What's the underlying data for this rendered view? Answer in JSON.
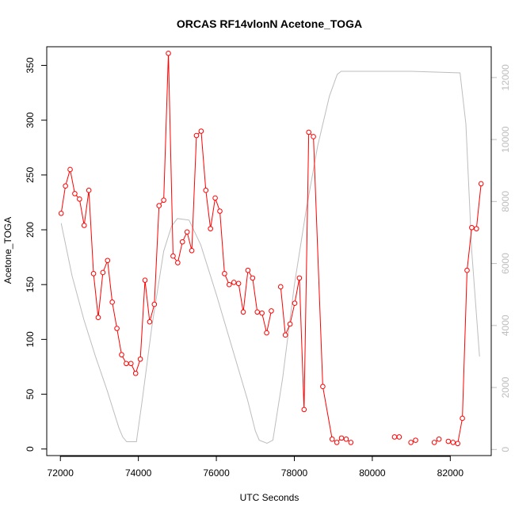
{
  "chart_data": {
    "type": "line",
    "title": "ORCAS RF14vlonN Acetone_TOGA",
    "xlabel": "UTC Seconds",
    "ylabel": "Acetone_TOGA",
    "xlim": [
      71650,
      83050
    ],
    "ylim": [
      -6,
      367
    ],
    "y2lim": [
      -197,
      12993
    ],
    "grid": false,
    "x_ticks": [
      72000,
      74000,
      76000,
      78000,
      80000,
      82000
    ],
    "x_tick_labels": [
      "72000",
      "74000",
      "76000",
      "78000",
      "80000",
      "82000"
    ],
    "y_ticks": [
      0,
      50,
      100,
      150,
      200,
      250,
      300,
      350
    ],
    "y_tick_labels": [
      "0",
      "50",
      "100",
      "150",
      "200",
      "250",
      "300",
      "350"
    ],
    "y2_ticks": [
      0,
      2000,
      4000,
      6000,
      8000,
      10000,
      12000
    ],
    "y2_tick_labels": [
      "0",
      "2000",
      "4000",
      "6000",
      "8000",
      "10000",
      "12000"
    ],
    "series": [
      {
        "color": "#ff0000",
        "marker": "open-circle",
        "axis": "left",
        "segments": [
          [
            [
              72020,
              215
            ],
            [
              72130,
              240
            ],
            [
              72250,
              255
            ],
            [
              72370,
              233
            ],
            [
              72490,
              228
            ],
            [
              72610,
              204
            ],
            [
              72730,
              236
            ],
            [
              72850,
              160
            ],
            [
              72970,
              120
            ],
            [
              73090,
              161
            ],
            [
              73210,
              172
            ],
            [
              73330,
              134
            ],
            [
              73450,
              110
            ],
            [
              73570,
              86
            ],
            [
              73690,
              78
            ],
            [
              73810,
              78
            ],
            [
              73930,
              69
            ],
            [
              74050,
              82
            ],
            [
              74170,
              154
            ],
            [
              74290,
              116
            ],
            [
              74410,
              132
            ],
            [
              74530,
              222
            ],
            [
              74650,
              227
            ],
            [
              74770,
              361
            ],
            [
              74890,
              176
            ],
            [
              75010,
              170
            ],
            [
              75130,
              189
            ],
            [
              75250,
              198
            ],
            [
              75370,
              181
            ],
            [
              75490,
              286
            ],
            [
              75610,
              290
            ],
            [
              75730,
              236
            ],
            [
              75850,
              201
            ],
            [
              75970,
              229
            ],
            [
              76090,
              217
            ],
            [
              76210,
              160
            ],
            [
              76330,
              150
            ],
            [
              76450,
              152
            ],
            [
              76570,
              151
            ],
            [
              76690,
              125
            ],
            [
              76810,
              163
            ],
            [
              76930,
              156
            ],
            [
              77050,
              125
            ],
            [
              77170,
              124
            ],
            [
              77290,
              106
            ],
            [
              77410,
              126
            ]
          ],
          [
            [
              77650,
              148
            ],
            [
              77770,
              104
            ],
            [
              77890,
              114
            ],
            [
              78010,
              133
            ],
            [
              78130,
              156
            ],
            [
              78250,
              36
            ],
            [
              78370,
              289
            ],
            [
              78490,
              285
            ],
            [
              78730,
              57
            ],
            [
              78970,
              9
            ],
            [
              79090,
              6
            ],
            [
              79210,
              10
            ],
            [
              79330,
              9
            ],
            [
              79450,
              6
            ]
          ],
          [
            [
              80570,
              11
            ],
            [
              80690,
              11
            ]
          ],
          [
            [
              80990,
              6
            ],
            [
              81110,
              8
            ]
          ],
          [
            [
              81590,
              6
            ],
            [
              81710,
              9
            ]
          ],
          [
            [
              81950,
              7
            ],
            [
              82070,
              6
            ],
            [
              82190,
              5
            ],
            [
              82310,
              28
            ],
            [
              82430,
              163
            ],
            [
              82550,
              202
            ],
            [
              82670,
              201
            ],
            [
              82790,
              242
            ]
          ]
        ]
      },
      {
        "color": "#bdbdbd",
        "marker": "none",
        "axis": "right",
        "points": [
          [
            72020,
            7300
          ],
          [
            72300,
            5600
          ],
          [
            72600,
            4200
          ],
          [
            72900,
            3000
          ],
          [
            73200,
            1900
          ],
          [
            73500,
            700
          ],
          [
            73600,
            400
          ],
          [
            73700,
            250
          ],
          [
            73950,
            250
          ],
          [
            74100,
            1600
          ],
          [
            74350,
            4000
          ],
          [
            74650,
            6400
          ],
          [
            74850,
            7200
          ],
          [
            75000,
            7450
          ],
          [
            75300,
            7400
          ],
          [
            75600,
            6600
          ],
          [
            76000,
            5000
          ],
          [
            76400,
            3300
          ],
          [
            76800,
            1600
          ],
          [
            77000,
            600
          ],
          [
            77100,
            300
          ],
          [
            77300,
            200
          ],
          [
            77450,
            300
          ],
          [
            77700,
            2300
          ],
          [
            78000,
            5300
          ],
          [
            78300,
            7700
          ],
          [
            78600,
            9800
          ],
          [
            78900,
            11400
          ],
          [
            79100,
            12100
          ],
          [
            79200,
            12200
          ],
          [
            80000,
            12200
          ],
          [
            81000,
            12200
          ],
          [
            82250,
            12150
          ],
          [
            82400,
            10500
          ],
          [
            82550,
            6400
          ],
          [
            82750,
            3000
          ]
        ]
      }
    ]
  }
}
